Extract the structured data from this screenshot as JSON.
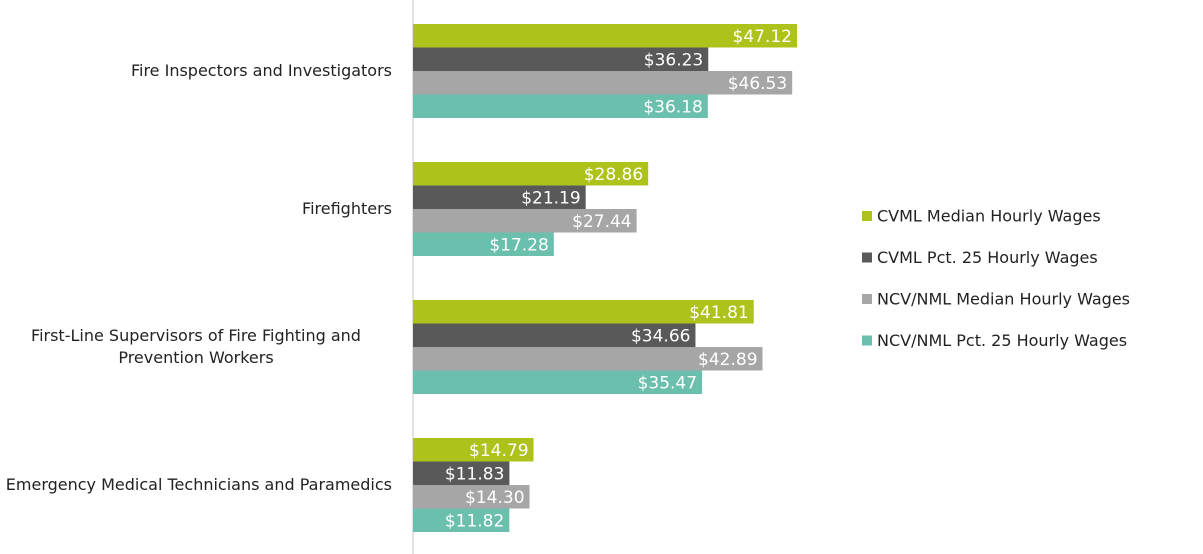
{
  "chart_data": {
    "type": "bar",
    "orientation": "horizontal",
    "categories": [
      "Fire Inspectors and Investigators",
      "Firefighters",
      "First-Line Supervisors of Fire Fighting and Prevention Workers",
      "Emergency Medical Technicians and Paramedics"
    ],
    "series": [
      {
        "name": "CVML Median Hourly Wages",
        "color": "#adc21b",
        "values": [
          47.12,
          28.86,
          41.81,
          14.79
        ],
        "value_labels": [
          "$47.12",
          "$28.86",
          "$41.81",
          "$14.79"
        ]
      },
      {
        "name": "CVML Pct. 25 Hourly Wages",
        "color": "#595959",
        "values": [
          36.23,
          21.19,
          34.66,
          11.83
        ],
        "value_labels": [
          "$36.23",
          "$21.19",
          "$34.66",
          "$11.83"
        ]
      },
      {
        "name": "NCV/NML Median Hourly Wages",
        "color": "#a6a6a6",
        "values": [
          46.53,
          27.44,
          42.89,
          14.3
        ],
        "value_labels": [
          "$46.53",
          "$27.44",
          "$42.89",
          "$14.30"
        ]
      },
      {
        "name": "NCV/NML Pct. 25 Hourly Wages",
        "color": "#6bbfad",
        "values": [
          36.18,
          17.28,
          35.47,
          11.82
        ],
        "value_labels": [
          "$36.18",
          "$17.28",
          "$35.47",
          "$11.82"
        ]
      }
    ],
    "legend": "right"
  }
}
